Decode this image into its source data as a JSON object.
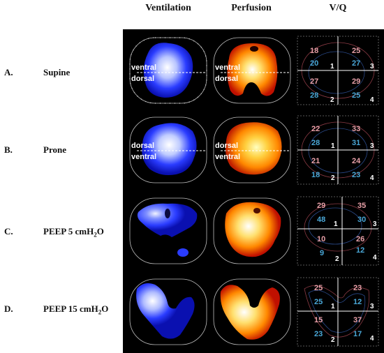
{
  "columns": [
    "Ventilation",
    "Perfusion",
    "V/Q"
  ],
  "rows": [
    {
      "letter": "A.",
      "title": "Supine",
      "sub": "",
      "tail": "",
      "orient": [
        "ventral",
        "dorsal"
      ],
      "vq": {
        "tl": {
          "top": "18",
          "bot": "20"
        },
        "tr": {
          "top": "25",
          "bot": "27"
        },
        "bl": {
          "top": "27",
          "bot": "28"
        },
        "br": {
          "top": "29",
          "bot": "25"
        }
      }
    },
    {
      "letter": "B.",
      "title": "Prone",
      "sub": "",
      "tail": "",
      "orient": [
        "dorsal",
        "ventral"
      ],
      "vq": {
        "tl": {
          "top": "22",
          "bot": "28"
        },
        "tr": {
          "top": "33",
          "bot": "31"
        },
        "bl": {
          "top": "21",
          "bot": "18"
        },
        "br": {
          "top": "24",
          "bot": "23"
        }
      }
    },
    {
      "letter": "C.",
      "title": "PEEP 5 cmH",
      "sub": "2",
      "tail": "O",
      "orient": [
        "",
        ""
      ],
      "vq": {
        "tl": {
          "top": "29",
          "bot": "48"
        },
        "tr": {
          "top": "35",
          "bot": "30"
        },
        "bl": {
          "top": "10",
          "bot": "9"
        },
        "br": {
          "top": "26",
          "bot": "12"
        }
      }
    },
    {
      "letter": "D.",
      "title": "PEEP 15 cmH",
      "sub": "2",
      "tail": "O",
      "orient": [
        "",
        ""
      ],
      "vq": {
        "tl": {
          "top": "25",
          "bot": "25"
        },
        "tr": {
          "top": "23",
          "bot": "12"
        },
        "bl": {
          "top": "15",
          "bot": "23"
        },
        "br": {
          "top": "37",
          "bot": "17"
        }
      }
    }
  ],
  "quadrant_numbers": [
    "1",
    "2",
    "3",
    "4"
  ],
  "colors": {
    "ventilation": "#2a3cff",
    "perfusion": "#ffb000",
    "vq_top": "#e8a0a8",
    "vq_bottom": "#4aa8d8"
  }
}
